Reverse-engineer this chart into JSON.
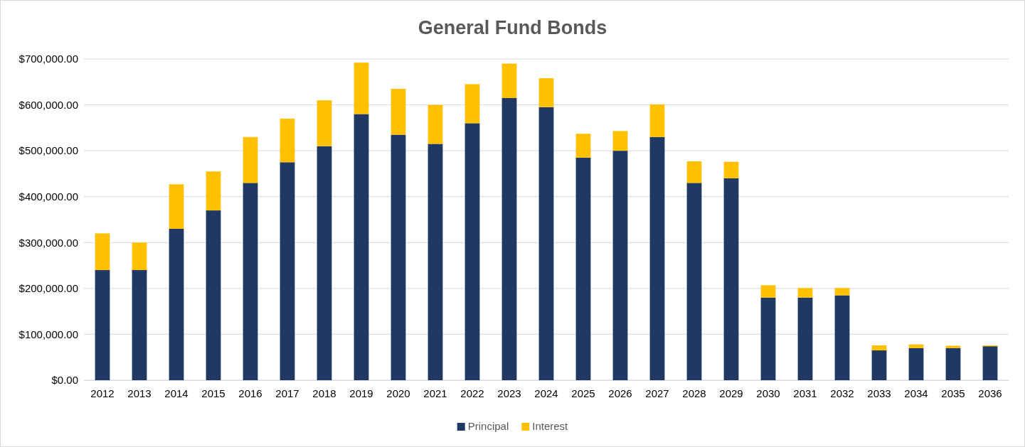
{
  "chart_data": {
    "type": "bar",
    "title": "General Fund Bonds",
    "stacked": true,
    "legend": "bottom",
    "grid": "y",
    "categories": [
      "2012",
      "2013",
      "2014",
      "2015",
      "2016",
      "2017",
      "2018",
      "2019",
      "2020",
      "2021",
      "2022",
      "2023",
      "2024",
      "2025",
      "2026",
      "2027",
      "2028",
      "2029",
      "2030",
      "2031",
      "2032",
      "2033",
      "2034",
      "2035",
      "2036"
    ],
    "series": [
      {
        "name": "Principal",
        "color": "#203864",
        "values": [
          240000,
          240000,
          330000,
          370000,
          430000,
          475000,
          510000,
          580000,
          535000,
          515000,
          560000,
          615000,
          595000,
          485000,
          500000,
          530000,
          430000,
          440000,
          180000,
          180000,
          185000,
          65000,
          70000,
          70000,
          74000
        ]
      },
      {
        "name": "Interest",
        "color": "#ffc000",
        "values": [
          80000,
          60000,
          97000,
          85000,
          100000,
          95000,
          100000,
          112000,
          100000,
          85000,
          85000,
          75000,
          63000,
          52000,
          43000,
          71000,
          47000,
          36000,
          27000,
          21000,
          16000,
          11000,
          8000,
          5000,
          2000
        ]
      }
    ],
    "ylim": [
      0,
      700000
    ],
    "yticks": [
      {
        "value": 0,
        "label": "$0.00"
      },
      {
        "value": 100000,
        "label": "$100,000.00"
      },
      {
        "value": 200000,
        "label": "$200,000.00"
      },
      {
        "value": 300000,
        "label": "$300,000.00"
      },
      {
        "value": 400000,
        "label": "$400,000.00"
      },
      {
        "value": 500000,
        "label": "$500,000.00"
      },
      {
        "value": 600000,
        "label": "$600,000.00"
      },
      {
        "value": 700000,
        "label": "$700,000.00"
      }
    ]
  }
}
